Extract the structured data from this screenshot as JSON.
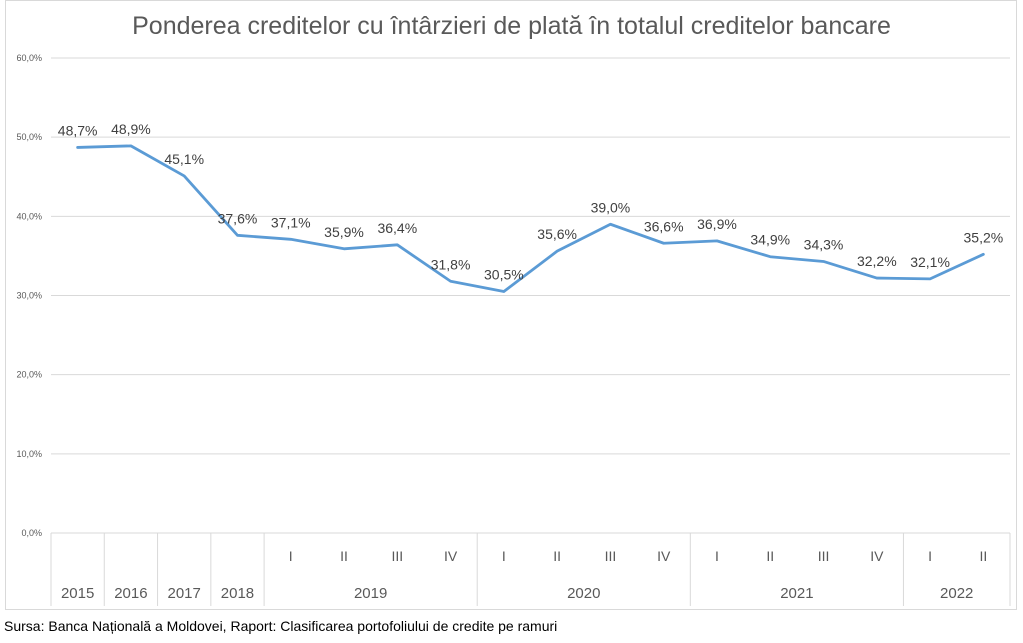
{
  "chart_data": {
    "type": "line",
    "title": "Ponderea creditelor cu întârzieri de plată în totalul creditelor bancare",
    "xlabel": "",
    "ylabel": "",
    "ylim": [
      0,
      60
    ],
    "yticks": [
      "0,0%",
      "10,0%",
      "20,0%",
      "30,0%",
      "40,0%",
      "50,0%",
      "60,0%"
    ],
    "ytick_values": [
      0,
      10,
      20,
      30,
      40,
      50,
      60
    ],
    "grid": true,
    "legend": "none",
    "line_color": "#5b9bd5",
    "categories": [
      {
        "sub": "",
        "group": "2015"
      },
      {
        "sub": "",
        "group": "2016"
      },
      {
        "sub": "",
        "group": "2017"
      },
      {
        "sub": "",
        "group": "2018"
      },
      {
        "sub": "I",
        "group": "2019"
      },
      {
        "sub": "II",
        "group": "2019"
      },
      {
        "sub": "III",
        "group": "2019"
      },
      {
        "sub": "IV",
        "group": "2019"
      },
      {
        "sub": "I",
        "group": "2020"
      },
      {
        "sub": "II",
        "group": "2020"
      },
      {
        "sub": "III",
        "group": "2020"
      },
      {
        "sub": "IV",
        "group": "2020"
      },
      {
        "sub": "I",
        "group": "2021"
      },
      {
        "sub": "II",
        "group": "2021"
      },
      {
        "sub": "III",
        "group": "2021"
      },
      {
        "sub": "IV",
        "group": "2021"
      },
      {
        "sub": "I",
        "group": "2022"
      },
      {
        "sub": "II",
        "group": "2022"
      }
    ],
    "series": [
      {
        "name": "Ponderea creditelor cu întârzieri",
        "values": [
          48.7,
          48.9,
          45.1,
          37.6,
          37.1,
          35.9,
          36.4,
          31.8,
          30.5,
          35.6,
          39.0,
          36.6,
          36.9,
          34.9,
          34.3,
          32.2,
          32.1,
          35.2
        ],
        "labels": [
          "48,7%",
          "48,9%",
          "45,1%",
          "37,6%",
          "37,1%",
          "35,9%",
          "36,4%",
          "31,8%",
          "30,5%",
          "35,6%",
          "39,0%",
          "36,6%",
          "36,9%",
          "34,9%",
          "34,3%",
          "32,2%",
          "32,1%",
          "35,2%"
        ]
      }
    ],
    "year_groups": [
      {
        "label": "2015",
        "start": 0,
        "end": 0
      },
      {
        "label": "2016",
        "start": 1,
        "end": 1
      },
      {
        "label": "2017",
        "start": 2,
        "end": 2
      },
      {
        "label": "2018",
        "start": 3,
        "end": 3
      },
      {
        "label": "2019",
        "start": 4,
        "end": 7
      },
      {
        "label": "2020",
        "start": 8,
        "end": 11
      },
      {
        "label": "2021",
        "start": 12,
        "end": 15
      },
      {
        "label": "2022",
        "start": 16,
        "end": 17
      }
    ]
  },
  "source": "Sursa: Banca Națională a Moldovei, Raport: Clasificarea portofoliului de credite pe ramuri"
}
